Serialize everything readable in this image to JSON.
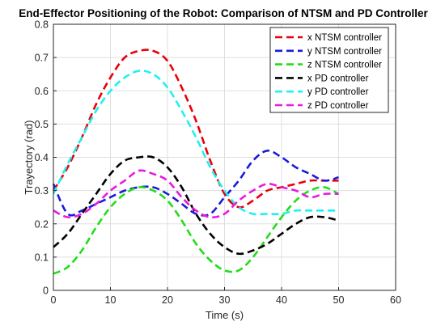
{
  "chart_data": {
    "type": "line",
    "title": "End-Effector Positioning of the Robot: Comparison of NTSM and PD Controller",
    "xlabel": "Time (s)",
    "ylabel": "Trayectory (rad)",
    "xlim": [
      0,
      60
    ],
    "ylim": [
      0,
      0.8
    ],
    "xticks": [
      0,
      10,
      20,
      30,
      40,
      50,
      60
    ],
    "yticks": [
      0,
      0.1,
      0.2,
      0.3,
      0.4,
      0.5,
      0.6,
      0.7,
      0.8
    ],
    "xtick_labels": [
      "0",
      "10",
      "20",
      "30",
      "40",
      "50",
      "60"
    ],
    "ytick_labels": [
      "0",
      "0.1",
      "0.2",
      "0.3",
      "0.4",
      "0.5",
      "0.6",
      "0.7",
      "0.8"
    ],
    "grid": true,
    "legend_position": "top-right",
    "x": [
      0,
      2.5,
      5,
      7.5,
      10,
      12.5,
      15,
      17.5,
      20,
      22.5,
      25,
      27.5,
      30,
      32.5,
      35,
      37.5,
      40,
      42.5,
      45,
      47.5,
      50
    ],
    "series": [
      {
        "name": "x NTSM controller",
        "color": "#e8000b",
        "values": [
          0.3,
          0.37,
          0.46,
          0.56,
          0.64,
          0.7,
          0.72,
          0.72,
          0.69,
          0.61,
          0.51,
          0.39,
          0.29,
          0.25,
          0.27,
          0.3,
          0.31,
          0.32,
          0.33,
          0.33,
          0.33
        ]
      },
      {
        "name": "y NTSM controller",
        "color": "#1a1ad9",
        "values": [
          0.32,
          0.23,
          0.24,
          0.26,
          0.28,
          0.3,
          0.31,
          0.31,
          0.29,
          0.26,
          0.23,
          0.23,
          0.28,
          0.33,
          0.39,
          0.42,
          0.4,
          0.37,
          0.35,
          0.33,
          0.34
        ]
      },
      {
        "name": "z NTSM controller",
        "color": "#22dd1a",
        "values": [
          0.05,
          0.07,
          0.12,
          0.19,
          0.25,
          0.29,
          0.31,
          0.3,
          0.27,
          0.21,
          0.14,
          0.09,
          0.06,
          0.06,
          0.1,
          0.16,
          0.22,
          0.27,
          0.3,
          0.31,
          0.29
        ]
      },
      {
        "name": "x PD controller",
        "color": "#000000",
        "values": [
          0.13,
          0.17,
          0.23,
          0.29,
          0.35,
          0.39,
          0.4,
          0.4,
          0.37,
          0.31,
          0.23,
          0.17,
          0.13,
          0.11,
          0.12,
          0.14,
          0.17,
          0.2,
          0.22,
          0.22,
          0.21
        ]
      },
      {
        "name": "y PD controller",
        "color": "#22f0f0",
        "values": [
          0.29,
          0.38,
          0.46,
          0.54,
          0.6,
          0.64,
          0.66,
          0.65,
          0.61,
          0.54,
          0.46,
          0.37,
          0.3,
          0.25,
          0.23,
          0.23,
          0.23,
          0.24,
          0.24,
          0.24,
          0.24
        ]
      },
      {
        "name": "z PD controller",
        "color": "#e81ae0",
        "values": [
          0.24,
          0.22,
          0.23,
          0.26,
          0.3,
          0.33,
          0.36,
          0.35,
          0.33,
          0.28,
          0.24,
          0.22,
          0.23,
          0.27,
          0.3,
          0.32,
          0.31,
          0.3,
          0.28,
          0.29,
          0.29
        ]
      }
    ]
  }
}
